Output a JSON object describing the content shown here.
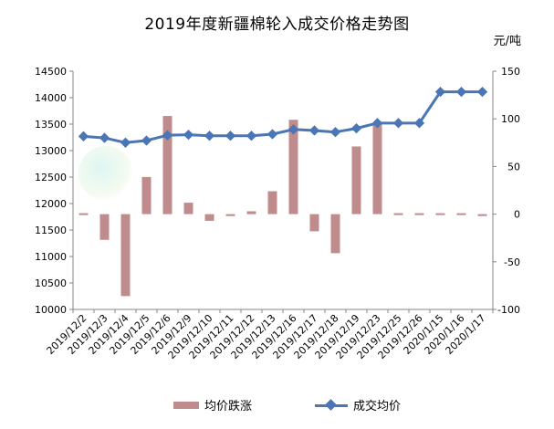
{
  "title": "2019年度新疆棉轮入成交价格走势图",
  "unit": "元/吨",
  "legend": {
    "bar": "均价跌涨",
    "line": "成交均价"
  },
  "chart_data": {
    "type": "bar+line",
    "title": "2019年度新疆棉轮入成交价格走势图",
    "categories": [
      "2019/12/2",
      "2019/12/3",
      "2019/12/4",
      "2019/12/5",
      "2019/12/6",
      "2019/12/9",
      "2019/12/10",
      "2019/12/11",
      "2019/12/12",
      "2019/12/13",
      "2019/12/16",
      "2019/12/17",
      "2019/12/18",
      "2019/12/19",
      "2019/12/23",
      "2019/12/25",
      "2019/12/26",
      "2020/1/15",
      "2020/1/16",
      "2020/1/17"
    ],
    "series": [
      {
        "name": "均价跌涨",
        "type": "bar",
        "axis": "right",
        "color": "#c08b8c",
        "values": [
          0,
          -27,
          -86,
          39,
          103,
          12,
          -7,
          -2,
          3,
          24,
          99,
          -18,
          -41,
          71,
          95,
          0,
          0,
          0,
          0,
          -2
        ]
      },
      {
        "name": "成交均价",
        "type": "line",
        "axis": "left",
        "color": "#4a76b5",
        "values": [
          13270,
          13240,
          13150,
          13190,
          13290,
          13300,
          13280,
          13280,
          13280,
          13310,
          13400,
          13380,
          13350,
          13420,
          13520,
          13520,
          13520,
          14110,
          14110,
          14110
        ]
      }
    ],
    "y_left": {
      "min": 10000,
      "max": 14500,
      "step": 500,
      "ticks": [
        "10000",
        "10500",
        "11000",
        "11500",
        "12000",
        "12500",
        "13000",
        "13500",
        "14000",
        "14500"
      ]
    },
    "y_right": {
      "min": -100,
      "max": 150,
      "step": 50,
      "ticks": [
        "-100",
        "-50",
        "0",
        "50",
        "100",
        "150"
      ]
    },
    "grid": false,
    "legend_position": "bottom"
  }
}
